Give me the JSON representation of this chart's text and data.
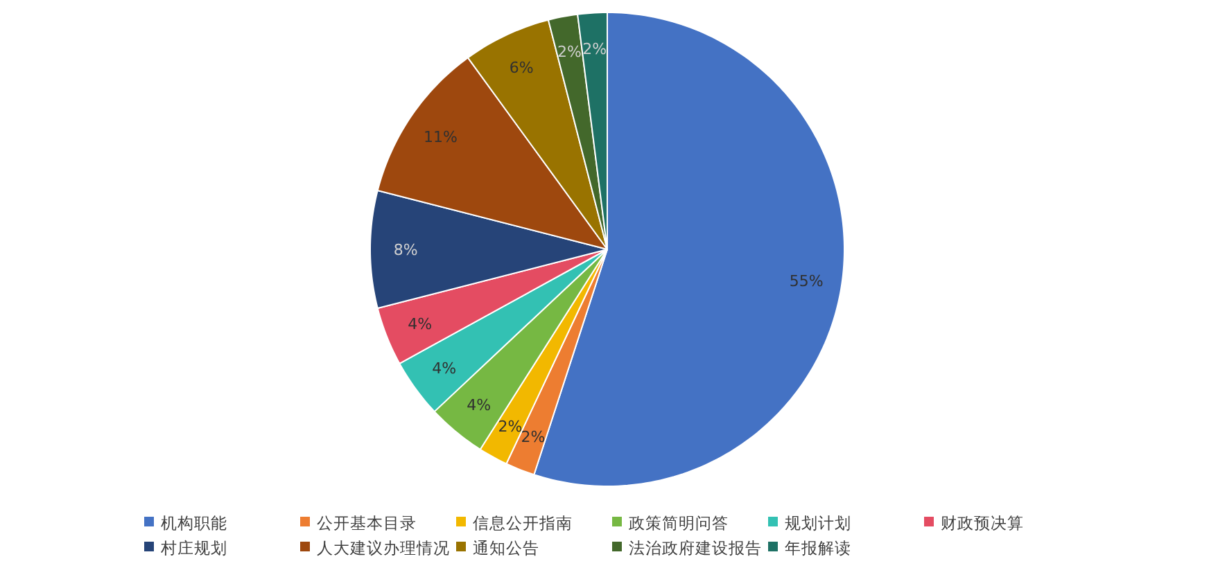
{
  "chart_data": {
    "type": "pie",
    "categories": [
      "机构职能",
      "公开基本目录",
      "信息公开指南",
      "政策简明问答",
      "规划计划",
      "财政预决算",
      "村庄规划",
      "人大建议办理情况",
      "通知公告",
      "法治政府建设报告",
      "年报解读"
    ],
    "values": [
      55,
      2,
      2,
      4,
      4,
      4,
      8,
      11,
      6,
      2,
      2
    ],
    "colors": [
      "#4472c4",
      "#ed7d31",
      "#f2b800",
      "#76b843",
      "#33c1b3",
      "#e44c62",
      "#264478",
      "#9e480e",
      "#997300",
      "#43682b",
      "#1e7165"
    ],
    "value_labels": [
      "55%",
      "2%",
      "2%",
      "4%",
      "4%",
      "4%",
      "8%",
      "11%",
      "6%",
      "2%",
      "2%"
    ],
    "legend": "bottom"
  }
}
